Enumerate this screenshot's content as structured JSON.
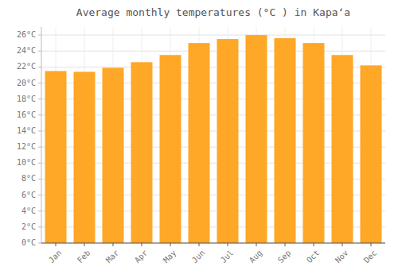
{
  "chart_data": {
    "type": "bar",
    "title": "Average monthly temperatures (°C ) in Kapaʻa",
    "categories": [
      "Jan",
      "Feb",
      "Mar",
      "Apr",
      "May",
      "Jun",
      "Jul",
      "Aug",
      "Sep",
      "Oct",
      "Nov",
      "Dec"
    ],
    "values": [
      21.5,
      21.4,
      21.9,
      22.6,
      23.5,
      25.0,
      25.5,
      26.0,
      25.6,
      25.0,
      23.5,
      22.2
    ],
    "color": "#FFA726",
    "ylim": [
      0,
      27
    ],
    "yticks": [
      {
        "value": 0,
        "label": "0°C"
      },
      {
        "value": 2,
        "label": "2°C"
      },
      {
        "value": 4,
        "label": "4°C"
      },
      {
        "value": 6,
        "label": "6°C"
      },
      {
        "value": 8,
        "label": "8°C"
      },
      {
        "value": 10,
        "label": "10°C"
      },
      {
        "value": 12,
        "label": "12°C"
      },
      {
        "value": 14,
        "label": "14°C"
      },
      {
        "value": 16,
        "label": "16°C"
      },
      {
        "value": 18,
        "label": "18°C"
      },
      {
        "value": 20,
        "label": "20°C"
      },
      {
        "value": 22,
        "label": "22°C"
      },
      {
        "value": 24,
        "label": "24°C"
      },
      {
        "value": 26,
        "label": "26°C"
      }
    ],
    "grid": true
  }
}
